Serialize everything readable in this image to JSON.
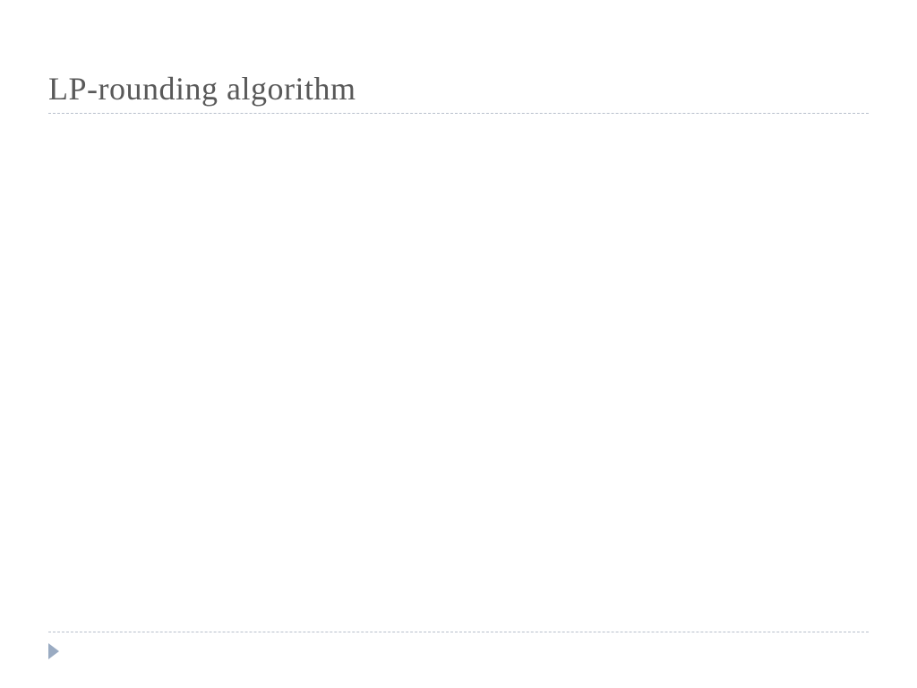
{
  "slide": {
    "title": "LP-rounding algorithm",
    "title_color": "#595959",
    "title_fontsize": 36,
    "background_color": "#ffffff",
    "divider_color": "#b8c0cc",
    "arrow_color": "#9aabc2"
  }
}
